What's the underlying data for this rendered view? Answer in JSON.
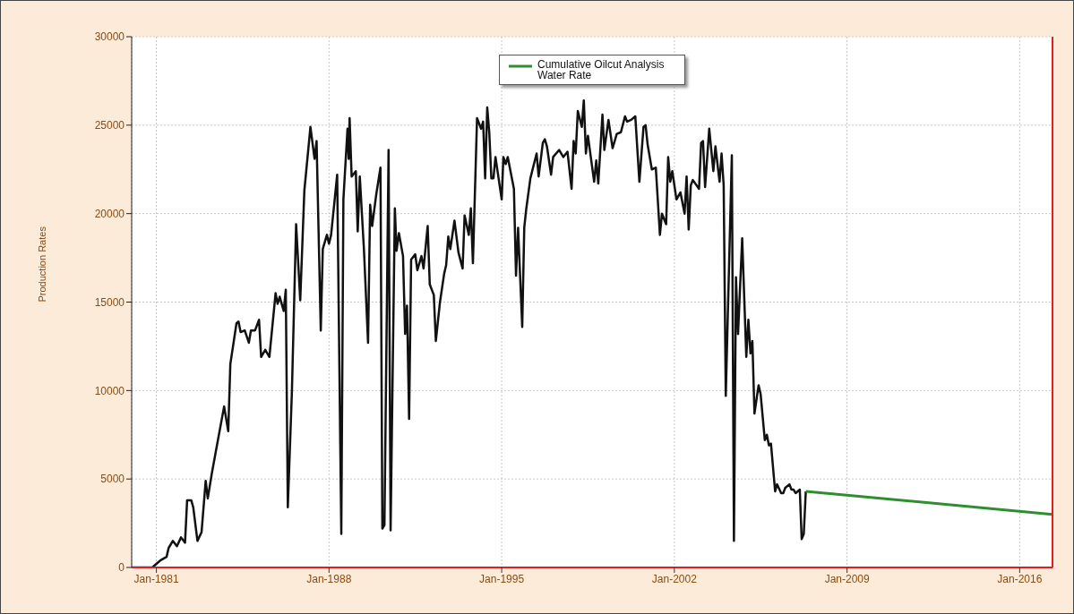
{
  "chart_data": {
    "type": "line",
    "ylabel": "Production Rates",
    "xlim": [
      "1980-01",
      "2017-05"
    ],
    "xticks": [
      {
        "value": "1981-01",
        "label": "Jan-1981"
      },
      {
        "value": "1988-01",
        "label": "Jan-1988"
      },
      {
        "value": "1995-01",
        "label": "Jan-1995"
      },
      {
        "value": "2002-01",
        "label": "Jan-2002"
      },
      {
        "value": "2009-01",
        "label": "Jan-2009"
      },
      {
        "value": "2016-01",
        "label": "Jan-2016"
      }
    ],
    "ylim": [
      0,
      30000
    ],
    "yticks": [
      0,
      5000,
      10000,
      15000,
      20000,
      25000,
      30000
    ],
    "grid": true,
    "legend": "top",
    "marker": "none",
    "line_style": "solid",
    "series": [
      {
        "color": "#111111",
        "x": [
          "1980-01",
          "1980-07",
          "1980-11",
          "1981-01",
          "1981-03",
          "1981-06",
          "1981-07",
          "1981-09",
          "1981-11",
          "1982-01",
          "1982-03",
          "1982-04",
          "1982-06",
          "1982-07",
          "1982-09",
          "1982-11",
          "1983-01",
          "1983-02",
          "1983-04",
          "1983-07",
          "1983-10",
          "1983-12",
          "1984-01",
          "1984-04",
          "1984-05",
          "1984-06",
          "1984-08",
          "1984-10",
          "1984-11",
          "1985-01",
          "1985-03",
          "1985-04",
          "1985-06",
          "1985-08",
          "1985-11",
          "1985-12",
          "1986-01",
          "1986-03",
          "1986-04",
          "1986-05",
          "1986-07",
          "1986-09",
          "1986-11",
          "1987-01",
          "1987-04",
          "1987-06",
          "1987-07",
          "1987-09",
          "1987-10",
          "1987-12",
          "1988-01",
          "1988-02",
          "1988-05",
          "1988-07",
          "1988-08",
          "1988-10-01",
          "1988-10-19",
          "1988-11",
          "1988-12",
          "1989-02",
          "1989-03",
          "1989-04",
          "1989-06",
          "1989-08",
          "1989-09",
          "1989-10",
          "1989-12",
          "1990-02",
          "1990-03",
          "1990-04",
          "1990-06",
          "1990-07",
          "1990-09-02",
          "1990-09-27",
          "1990-11",
          "1991-01",
          "1991-02",
          "1991-03",
          "1991-04",
          "1991-05",
          "1991-07",
          "1991-08",
          "1991-10",
          "1991-11",
          "1992-01",
          "1992-02",
          "1992-04",
          "1992-05",
          "1992-07",
          "1992-09",
          "1992-10",
          "1992-11",
          "1992-12",
          "1993-02",
          "1993-04",
          "1993-06",
          "1993-07",
          "1993-09",
          "1993-10",
          "1993-11",
          "1994-01",
          "1994-03",
          "1994-04",
          "1994-05",
          "1994-06",
          "1994-07",
          "1994-08",
          "1994-09",
          "1994-10",
          "1995-01-01",
          "1995-01-26",
          "1995-03",
          "1995-04",
          "1995-07",
          "1995-08",
          "1995-09",
          "1995-11",
          "1995-12",
          "1996-01",
          "1996-03",
          "1996-06",
          "1996-07",
          "1996-09",
          "1996-10",
          "1996-11",
          "1997-01",
          "1997-02",
          "1997-05",
          "1997-07",
          "1997-09",
          "1997-11",
          "1997-12",
          "1998-01",
          "1998-02",
          "1998-04",
          "1998-05",
          "1998-06",
          "1998-07",
          "1998-10",
          "1998-11",
          "1998-12",
          "1999-02",
          "1999-03",
          "1999-05",
          "1999-07",
          "1999-09",
          "1999-11",
          "2000-01",
          "2000-02",
          "2000-04",
          "2000-06",
          "2000-08",
          "2000-10",
          "2000-11",
          "2000-12",
          "2001-02",
          "2001-04",
          "2001-06",
          "2001-07",
          "2001-09",
          "2001-10",
          "2001-11",
          "2001-12",
          "2002-02",
          "2002-04",
          "2002-06",
          "2002-07",
          "2002-08",
          "2002-09",
          "2002-10",
          "2003-01",
          "2003-02",
          "2003-03",
          "2003-04",
          "2003-06",
          "2003-08",
          "2003-09",
          "2003-11",
          "2003-12",
          "2004-01",
          "2004-02",
          "2004-05",
          "2004-06",
          "2004-07",
          "2004-08",
          "2004-10",
          "2004-12",
          "2005-01",
          "2005-02",
          "2005-03",
          "2005-04",
          "2005-06",
          "2005-07",
          "2005-09",
          "2005-10",
          "2005-11",
          "2005-12",
          "2006-02",
          "2006-03",
          "2006-05",
          "2006-06",
          "2006-07",
          "2006-09",
          "2006-10",
          "2006-11",
          "2006-12",
          "2007-02",
          "2007-03",
          "2007-04",
          "2007-05"
        ],
        "values": [
          0,
          0,
          0,
          200,
          400,
          600,
          1100,
          1500,
          1200,
          1700,
          1400,
          3800,
          3800,
          3400,
          1500,
          2000,
          4900,
          3900,
          5300,
          7200,
          9100,
          7700,
          11500,
          13800,
          13900,
          13300,
          13400,
          12700,
          13400,
          13400,
          14000,
          11900,
          12300,
          11900,
          15500,
          14900,
          15300,
          14500,
          15700,
          3400,
          10000,
          19400,
          15100,
          21300,
          24900,
          23100,
          24100,
          13400,
          18000,
          18800,
          18300,
          18800,
          22200,
          1900,
          20800,
          24800,
          23100,
          25400,
          22100,
          22400,
          19000,
          22100,
          18000,
          12700,
          20500,
          19300,
          21100,
          22600,
          2200,
          2400,
          23600,
          2100,
          20300,
          17900,
          18900,
          17600,
          13200,
          14800,
          8400,
          17400,
          17700,
          16800,
          17600,
          16900,
          19300,
          16000,
          15400,
          12800,
          15000,
          16600,
          17100,
          18700,
          18000,
          19600,
          17800,
          16900,
          19900,
          18800,
          20300,
          17200,
          25400,
          24800,
          25200,
          22000,
          26000,
          24600,
          22000,
          22000,
          23200,
          20800,
          23200,
          22800,
          23200,
          21400,
          16500,
          19200,
          13600,
          19200,
          20300,
          22000,
          23400,
          22100,
          24000,
          24200,
          23800,
          22200,
          23200,
          23600,
          23200,
          23500,
          21400,
          24100,
          23400,
          25800,
          24900,
          26400,
          23400,
          24400,
          21800,
          23000,
          21700,
          25600,
          23600,
          25300,
          23700,
          24500,
          24600,
          25500,
          25200,
          25300,
          25500,
          21800,
          24900,
          25000,
          23900,
          22500,
          22600,
          18800,
          20000,
          19400,
          23200,
          21800,
          22400,
          20800,
          21200,
          20000,
          22100,
          19100,
          21600,
          21900,
          21400,
          24000,
          24100,
          21500,
          24800,
          22400,
          23800,
          21800,
          23400,
          21600,
          9700,
          23300,
          1500,
          16400,
          13200,
          18600,
          11900,
          14000,
          12100,
          12800,
          8700,
          10300,
          9800,
          7200,
          7500,
          6900,
          7000,
          4300,
          4700,
          4200,
          4200,
          4500,
          4700,
          4400,
          4400,
          4200,
          4400,
          1600,
          1900,
          4300
        ]
      },
      {
        "name": "Cumulative Oilcut Analysis Water Rate",
        "color": "#2f8f2f",
        "x": [
          "2007-05",
          "2017-05"
        ],
        "values": [
          4300,
          3000
        ]
      }
    ]
  }
}
